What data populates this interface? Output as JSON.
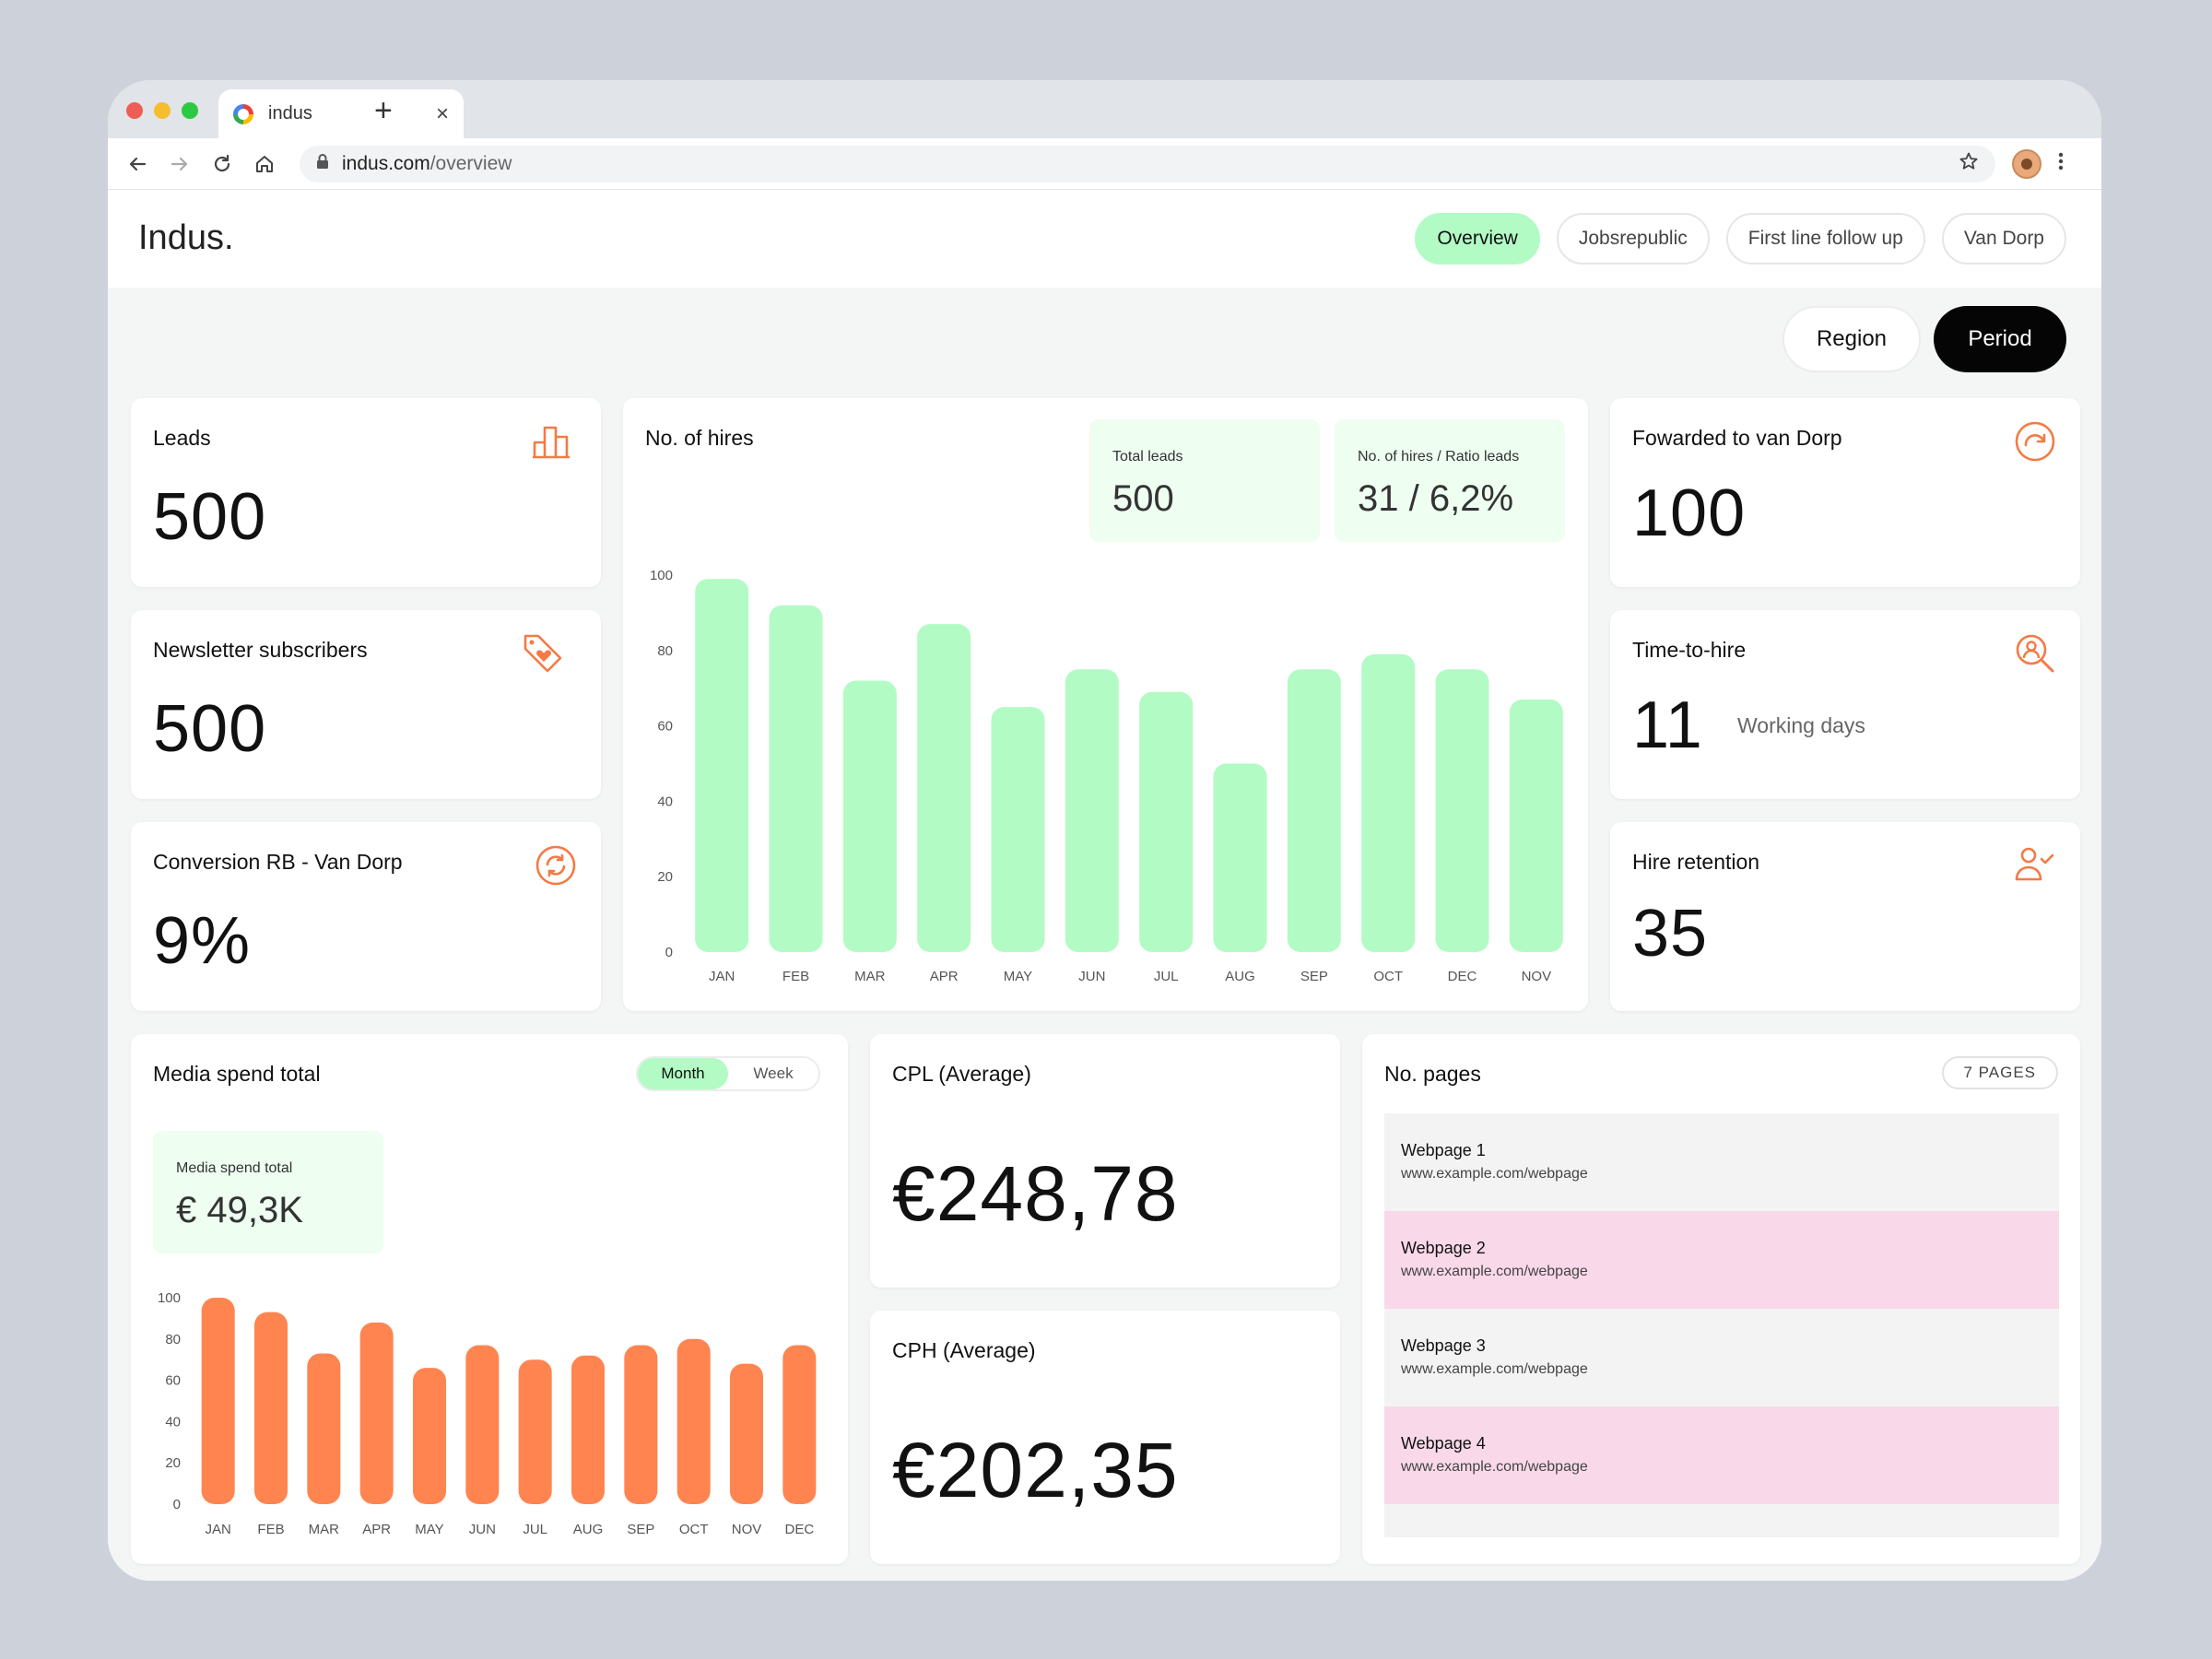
{
  "browser": {
    "tab_title": "indus",
    "tab_close": "×",
    "new_tab": "+",
    "url_host": "indus.com",
    "url_path": "/overview"
  },
  "header": {
    "brand": "Indus.",
    "nav": [
      {
        "label": "Overview",
        "active": true
      },
      {
        "label": "Jobsrepublic",
        "active": false
      },
      {
        "label": "First line follow up",
        "active": false
      },
      {
        "label": "Van Dorp",
        "active": false
      }
    ]
  },
  "filters": {
    "region_label": "Region",
    "period_label": "Period"
  },
  "cards": {
    "leads": {
      "title": "Leads",
      "value": "500",
      "icon": "bar-chart-icon"
    },
    "newsletter": {
      "title": "Newsletter subscribers",
      "value": "500",
      "icon": "tag-heart-icon"
    },
    "conversion": {
      "title": "Conversion RB - Van Dorp",
      "value": "9%",
      "icon": "sync-icon"
    },
    "forwarded": {
      "title": "Fowarded to van Dorp",
      "value": "100",
      "icon": "redo-icon"
    },
    "time_to_hire": {
      "title": "Time-to-hire",
      "value": "11",
      "unit": "Working days",
      "icon": "search-person-icon"
    },
    "retention": {
      "title": "Hire retention",
      "value": "35",
      "icon": "user-check-icon"
    },
    "cpl": {
      "title": "CPL (Average)",
      "value": "€248,78"
    },
    "cph": {
      "title": "CPH (Average)",
      "value": "€202,35"
    }
  },
  "hires": {
    "title": "No. of hires",
    "stat1_label": "Total leads",
    "stat1_value": "500",
    "stat2_label": "No. of hires / Ratio leads",
    "stat2_value": "31 / 6,2%"
  },
  "media": {
    "title": "Media spend total",
    "toggle_month": "Month",
    "toggle_week": "Week",
    "toggle_selected": "Month",
    "stat_label": "Media spend total",
    "stat_value": "€ 49,3K"
  },
  "pages": {
    "title": "No. pages",
    "badge": "7 PAGES",
    "items": [
      {
        "name": "Webpage 1",
        "url": "www.example.com/webpage"
      },
      {
        "name": "Webpage 2",
        "url": "www.example.com/webpage"
      },
      {
        "name": "Webpage 3",
        "url": "www.example.com/webpage"
      },
      {
        "name": "Webpage 4",
        "url": "www.example.com/webpage"
      },
      {
        "name": "",
        "url": ""
      }
    ]
  },
  "colors": {
    "accent_green": "#b2fbc4",
    "accent_orange": "#ff844f",
    "icon_orange": "#f47a45",
    "pink_row": "#f9d8ea"
  },
  "chart_data": [
    {
      "type": "bar",
      "categories": [
        "JAN",
        "FEB",
        "MAR",
        "APR",
        "MAY",
        "JUN",
        "JUL",
        "AUG",
        "SEP",
        "OCT",
        "DEC",
        "NOV"
      ],
      "values": [
        99,
        92,
        72,
        87,
        65,
        75,
        69,
        50,
        75,
        79,
        75,
        67
      ],
      "yticks": [
        0,
        20,
        40,
        60,
        80,
        100
      ],
      "ylim": [
        0,
        100
      ],
      "color": "#b2fbc4"
    },
    {
      "type": "bar",
      "categories": [
        "JAN",
        "FEB",
        "MAR",
        "APR",
        "MAY",
        "JUN",
        "JUL",
        "AUG",
        "SEP",
        "OCT",
        "NOV",
        "DEC"
      ],
      "values": [
        100,
        93,
        73,
        88,
        66,
        77,
        70,
        72,
        77,
        80,
        68,
        77
      ],
      "yticks": [
        0,
        20,
        40,
        60,
        80,
        100
      ],
      "ylim": [
        0,
        100
      ],
      "color": "#ff844f"
    }
  ]
}
